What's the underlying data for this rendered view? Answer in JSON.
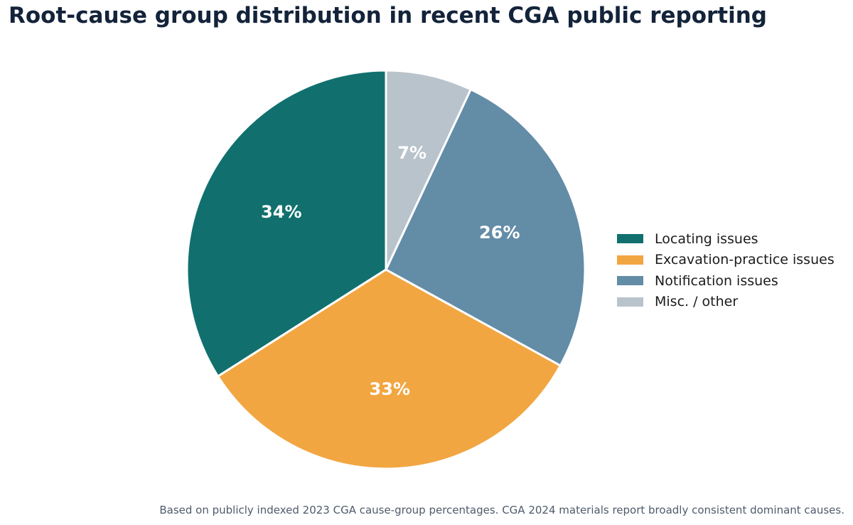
{
  "chart_data": {
    "type": "pie",
    "title": "Root-cause group distribution in recent CGA public reporting",
    "caption": "Based on publicly indexed 2023 CGA cause-group percentages. CGA 2024 materials report broadly consistent dominant causes.",
    "slices": [
      {
        "label": "Locating issues",
        "value": 34,
        "display": "34%",
        "color": "#11706e"
      },
      {
        "label": "Excavation-practice issues",
        "value": 33,
        "display": "33%",
        "color": "#f2a641"
      },
      {
        "label": "Notification issues",
        "value": 26,
        "display": "26%",
        "color": "#638ca7"
      },
      {
        "label": "Misc. / other",
        "value": 7,
        "display": "7%",
        "color": "#b9c3cc"
      }
    ],
    "start_angle": "12 o'clock",
    "direction": "counterclockwise",
    "legend_position": "right"
  }
}
